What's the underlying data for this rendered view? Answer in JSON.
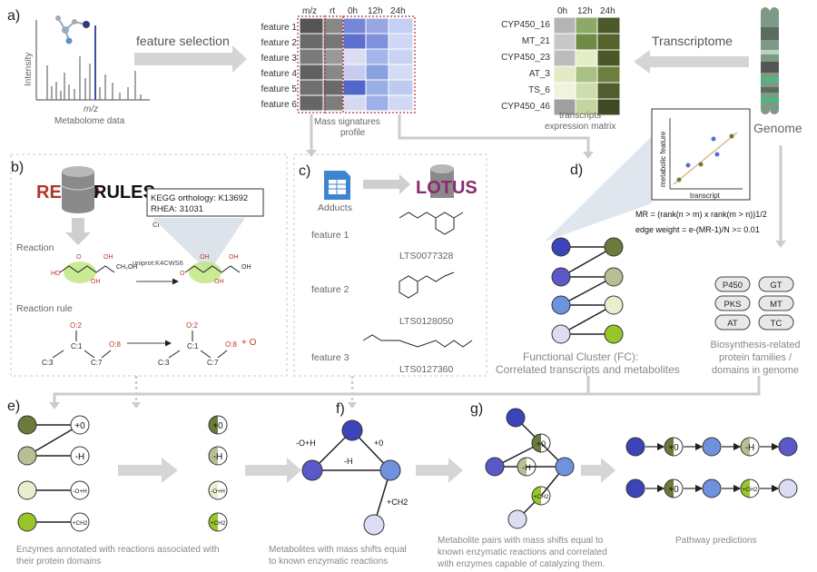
{
  "panels": {
    "a": "a)",
    "b": "b)",
    "c": "c)",
    "d": "d)",
    "e": "e)",
    "f": "f)",
    "g": "g)"
  },
  "panel_a": {
    "ms_ylabel": "Intensity",
    "ms_xlabel": "m/z",
    "ms_caption": "Metabolome data",
    "feature_selection": "feature selection",
    "heatmap_cols": [
      "m/z",
      "rt",
      "0h",
      "12h",
      "24h"
    ],
    "features": [
      "feature 1",
      "feature 2",
      "feature 3",
      "feature 4",
      "feature 5",
      "feature 6"
    ],
    "mass_caption_1": "Mass signatures",
    "mass_caption_2": "profile",
    "transcript_cols": [
      "0h",
      "12h",
      "24h"
    ],
    "transcripts": [
      "CYP450_16",
      "MT_21",
      "CYP450_23",
      "AT_3",
      "TS_6",
      "CYP450_46"
    ],
    "tx_caption_1": "transcripts",
    "tx_caption_2": "expression matrix",
    "transcriptome": "Transcriptome",
    "genome": "Genome"
  },
  "panel_b": {
    "retro": "RETRO",
    "rules": "RULES",
    "kegg": "KEGG orthology: K13692",
    "rhea": "RHEA: 31031",
    "cross_ref": "cross-referencing",
    "reaction": "Reaction",
    "uniprot": "uniprot:K4CWS6",
    "reaction_rule": "Reaction rule",
    "plus_o": "+ O"
  },
  "panel_c": {
    "adducts": "Adducts",
    "lotus": "LOTUS",
    "features": [
      "feature 1",
      "feature 2",
      "feature 3"
    ],
    "ids": [
      "LTS0077328",
      "LTS0128050",
      "LTS0127360"
    ]
  },
  "panel_d": {
    "plot_ylabel": "metabolic feature",
    "plot_xlabel": "transcript",
    "mr_formula": "MR = (rank(n > m) x rank(m > n))1/2",
    "edge_weight": "edge weight = e-(MR-1)/N >= 0.01",
    "fc_1": "Functional Cluster (FC):",
    "fc_2": "Correlated transcripts and metabolites",
    "families": [
      "P450",
      "GT",
      "PKS",
      "MT",
      "AT",
      "TC"
    ],
    "bio_1": "Biosynthesis-related",
    "bio_2": "protein families /",
    "bio_3": "domains in genome"
  },
  "panel_e": {
    "shifts": [
      "+0",
      "-H",
      "-O+H",
      "+CH2"
    ],
    "caption_1": "Enzymes annotated with reactions associated with",
    "caption_2": "their protein domains"
  },
  "panel_f": {
    "edges": [
      "-O+H",
      "+0",
      "-H",
      "+CH2"
    ],
    "caption_1": "Metabolites with mass shifts equal",
    "caption_2": "to known enzymatic reactions"
  },
  "panel_g": {
    "caption_1": "Metabolite pairs with mass shifts equal to",
    "caption_2": "known enzymatic reactions and correlated",
    "caption_3": "with enzymes capable of catalyzing them."
  },
  "pathway": {
    "caption": "Pathway predictions",
    "row1": [
      "+0",
      "-H"
    ],
    "row2": [
      "+0",
      "+CH2"
    ]
  },
  "colors": {
    "node_dark": "#3b44b8",
    "node_purple": "#5b59c9",
    "node_mid": "#6f92de",
    "node_light": "#dcdcf2",
    "green_dark": "#6b7a3d",
    "green_mid": "#b7c095",
    "green_light": "#e8efcf",
    "green_lime": "#98c62a",
    "arrow": "#cccccc"
  }
}
